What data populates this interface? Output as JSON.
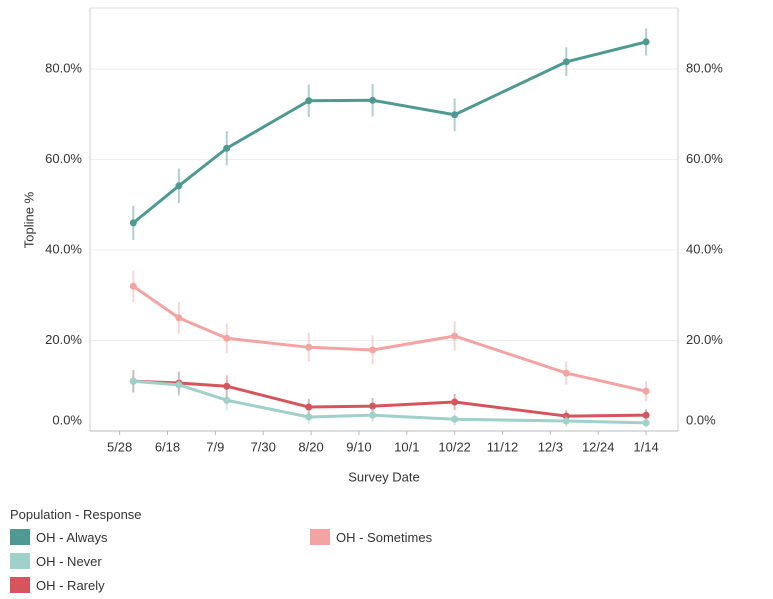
{
  "chart_data": {
    "type": "line",
    "x_label": "Survey Date",
    "y_label": "Topline %",
    "legend_title": "Population - Response",
    "x": [
      "6/3",
      "6/23",
      "7/14",
      "8/19",
      "9/16",
      "10/22",
      "12/10",
      "1/14"
    ],
    "xlim": [
      "5/15",
      "1/28"
    ],
    "xticks": [
      "5/28",
      "6/18",
      "7/9",
      "7/30",
      "8/20",
      "9/10",
      "10/1",
      "10/22",
      "11/12",
      "12/3",
      "12/24",
      "1/14"
    ],
    "ylim": [
      0,
      93.5
    ],
    "yticks": [
      {
        "value": 0,
        "label": "0.0%"
      },
      {
        "value": 20,
        "label": "20.0%"
      },
      {
        "value": 40,
        "label": "40.0%"
      },
      {
        "value": 60,
        "label": "60.0%"
      },
      {
        "value": 80,
        "label": "80.0%"
      }
    ],
    "grid": true,
    "series": [
      {
        "name": "OH - Always",
        "color": "#4e9a93",
        "values": [
          46,
          54.2,
          62.5,
          73,
          73.1,
          69.9,
          81.6,
          86
        ],
        "errors": [
          3.8,
          3.8,
          3.8,
          3.6,
          3.6,
          3.6,
          3.2,
          3
        ]
      },
      {
        "name": "OH - Never",
        "color": "#9fd0c9",
        "values": [
          11,
          10.2,
          6.8,
          3.1,
          3.5,
          2.6,
          2.2,
          1.8
        ],
        "errors": [
          2.5,
          2.5,
          2.2,
          1.5,
          1.5,
          1.3,
          1.2,
          1
        ]
      },
      {
        "name": "OH - Rarely",
        "color": "#d6545c",
        "values": [
          11,
          10.6,
          9.9,
          5.3,
          5.5,
          6.4,
          3.3,
          3.5
        ],
        "errors": [
          2.5,
          2.5,
          2.4,
          1.8,
          1.8,
          1.8,
          1.3,
          1.3
        ]
      },
      {
        "name": "OH - Sometimes",
        "color": "#f4a3a3",
        "values": [
          32,
          25,
          20.5,
          18.5,
          17.9,
          21,
          12.8,
          8.8
        ],
        "errors": [
          3.5,
          3.5,
          3.3,
          3.2,
          3.2,
          3.2,
          2.6,
          2.2
        ]
      }
    ]
  }
}
